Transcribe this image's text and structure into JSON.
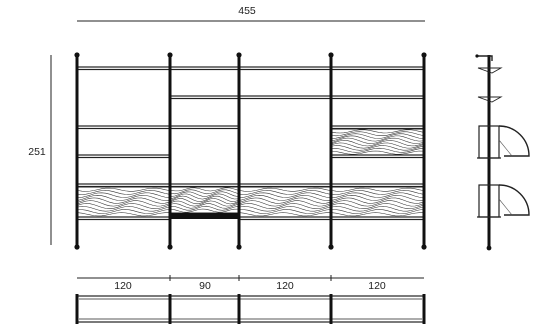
{
  "dimensions": {
    "total_width": "455",
    "total_height": "251",
    "bay_widths": [
      "120",
      "90",
      "120",
      "120"
    ]
  },
  "colors": {
    "line": "#222222",
    "post": "#111111",
    "background": "#ffffff"
  }
}
